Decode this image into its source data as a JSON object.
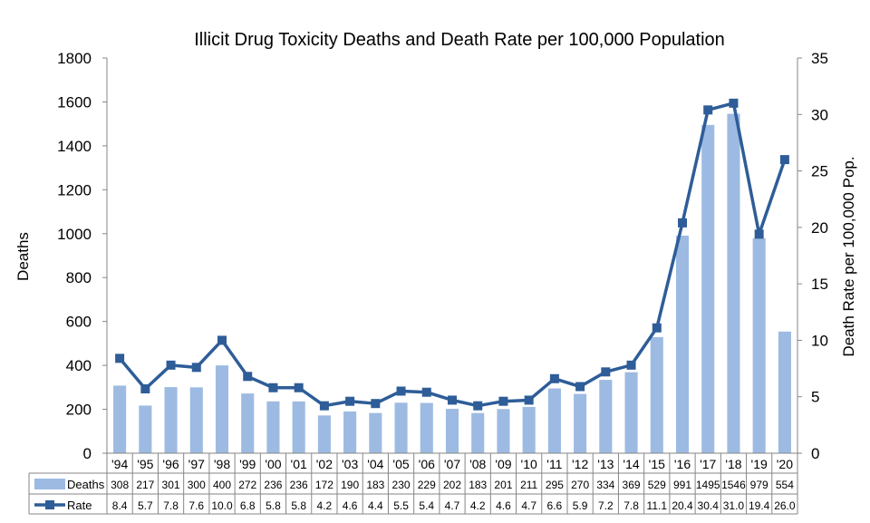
{
  "chart_data": {
    "type": "bar",
    "title": "Illicit Drug Toxicity Deaths and Death Rate per 100,000 Population",
    "ylabel": "Deaths",
    "y2label": "Death Rate per 100,000 Pop.",
    "ylim": [
      0,
      1800
    ],
    "y2lim": [
      0,
      35
    ],
    "yticks": [
      0,
      200,
      400,
      600,
      800,
      1000,
      1200,
      1400,
      1600,
      1800
    ],
    "y2ticks": [
      0,
      5,
      10,
      15,
      20,
      25,
      30,
      35
    ],
    "categories": [
      "'94",
      "'95",
      "'96",
      "'97",
      "'98",
      "'99",
      "'00",
      "'01",
      "'02",
      "'03",
      "'04",
      "'05",
      "'06",
      "'07",
      "'08",
      "'09",
      "'10",
      "'11",
      "'12",
      "'13",
      "'14",
      "'15",
      "'16",
      "'17",
      "'18",
      "'19",
      "'20"
    ],
    "series": [
      {
        "name": "Deaths",
        "type": "bar",
        "axis": "left",
        "color": "#9dbbe2",
        "values": [
          308,
          217,
          301,
          300,
          400,
          272,
          236,
          236,
          172,
          190,
          183,
          230,
          229,
          202,
          183,
          201,
          211,
          295,
          270,
          334,
          369,
          529,
          991,
          1495,
          1546,
          979,
          554
        ],
        "labels": [
          "308",
          "217",
          "301",
          "300",
          "400",
          "272",
          "236",
          "236",
          "172",
          "190",
          "183",
          "230",
          "229",
          "202",
          "183",
          "201",
          "211",
          "295",
          "270",
          "334",
          "369",
          "529",
          "991",
          "1495",
          "1546",
          "979",
          "554"
        ]
      },
      {
        "name": "Rate",
        "type": "line",
        "axis": "right",
        "color": "#2e5d98",
        "values": [
          8.4,
          5.7,
          7.8,
          7.6,
          10.0,
          6.8,
          5.8,
          5.8,
          4.2,
          4.6,
          4.4,
          5.5,
          5.4,
          4.7,
          4.2,
          4.6,
          4.7,
          6.6,
          5.9,
          7.2,
          7.8,
          11.1,
          20.4,
          30.4,
          31.0,
          19.4,
          26.0
        ],
        "labels": [
          "8.4",
          "5.7",
          "7.8",
          "7.6",
          "10.0",
          "6.8",
          "5.8",
          "5.8",
          "4.2",
          "4.6",
          "4.4",
          "5.5",
          "5.4",
          "4.7",
          "4.2",
          "4.6",
          "4.7",
          "6.6",
          "5.9",
          "7.2",
          "7.8",
          "11.1",
          "20.4",
          "30.4",
          "31.0",
          "19.4",
          "26.0"
        ]
      }
    ],
    "grid": false,
    "legend": "data-table-bottom"
  }
}
